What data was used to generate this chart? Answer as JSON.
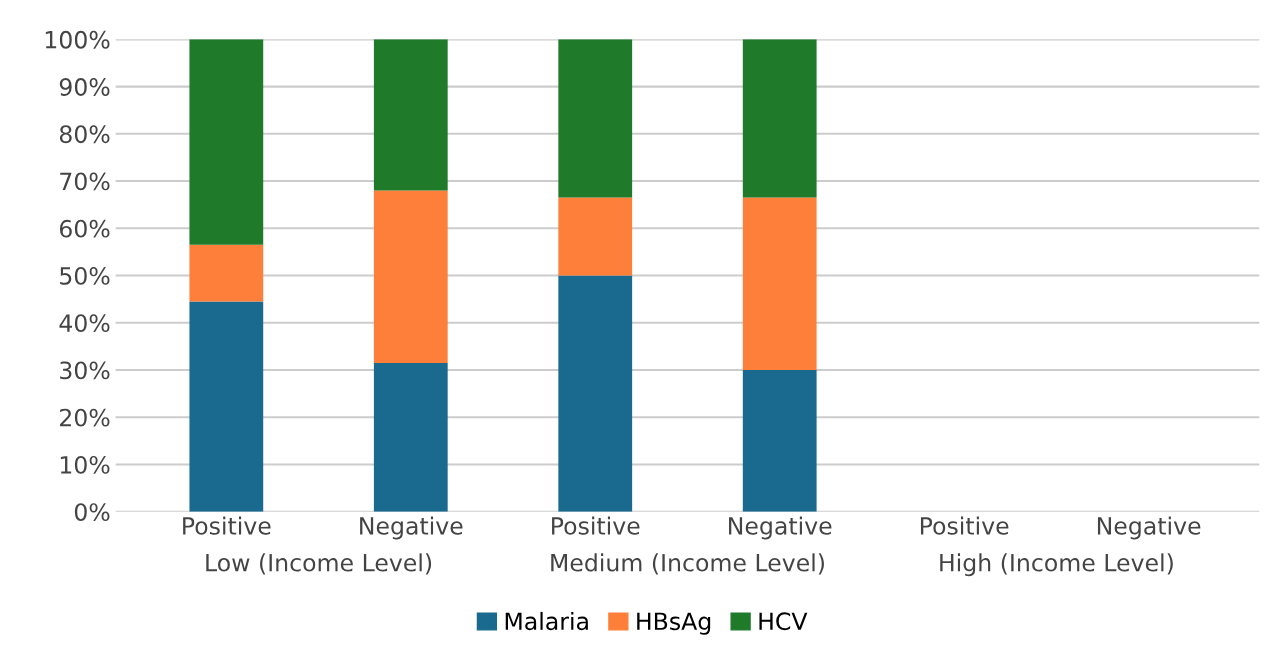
{
  "chart_data": {
    "type": "bar",
    "stacked": true,
    "categories": [
      "Positive",
      "Negative",
      "Positive",
      "Negative",
      "Positive",
      "Negative"
    ],
    "series": [
      {
        "name": "Malaria",
        "color": "#1a6a8f",
        "values": [
          44.5,
          31.5,
          50,
          30,
          0,
          0
        ]
      },
      {
        "name": "HBsAg",
        "color": "#fd7f39",
        "values": [
          12,
          36.5,
          16.5,
          36.5,
          0,
          0
        ]
      },
      {
        "name": "HCV",
        "color": "#1f7a2a",
        "values": [
          43.5,
          32,
          33.5,
          33.5,
          0,
          0
        ]
      }
    ],
    "ylim": [
      0,
      100
    ],
    "yticks": [
      {
        "value": 0,
        "label": "0%"
      },
      {
        "value": 10,
        "label": "10%"
      },
      {
        "value": 20,
        "label": "20%"
      },
      {
        "value": 30,
        "label": "30%"
      },
      {
        "value": 40,
        "label": "40%"
      },
      {
        "value": 50,
        "label": "50%"
      },
      {
        "value": 60,
        "label": "60%"
      },
      {
        "value": 70,
        "label": "70%"
      },
      {
        "value": 80,
        "label": "80%"
      },
      {
        "value": 90,
        "label": "90%"
      },
      {
        "value": 100,
        "label": "100%"
      }
    ],
    "annotations": [
      "Low (Income Level)",
      "Medium (Income Level)",
      "High (Income Level)"
    ],
    "grid": "y",
    "legend": "bottom"
  }
}
